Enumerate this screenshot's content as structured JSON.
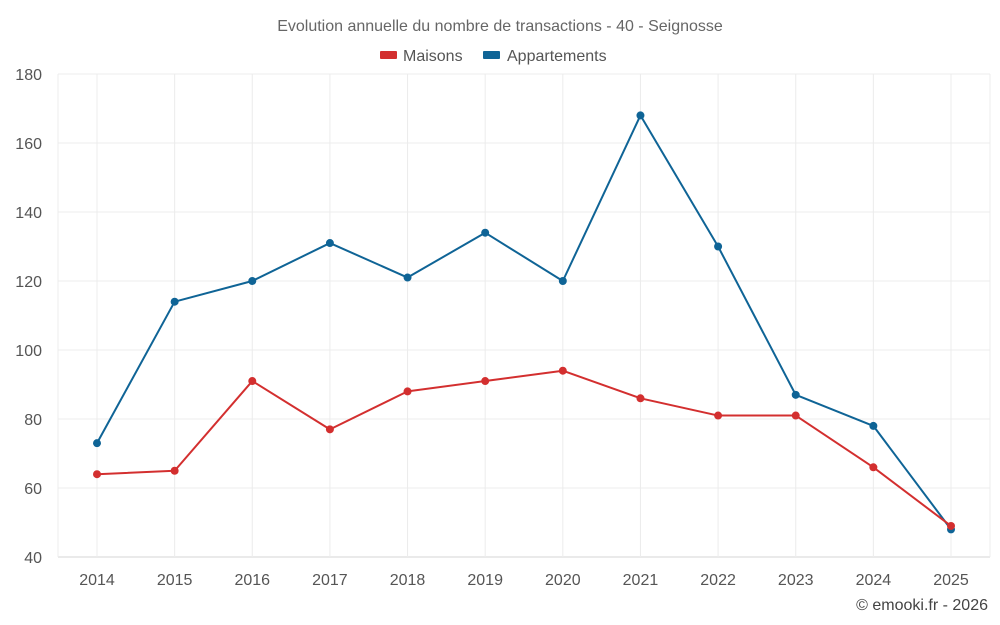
{
  "chart_data": {
    "type": "line",
    "title": "Evolution annuelle du nombre de transactions - 40 - Seignosse",
    "categories": [
      "2014",
      "2015",
      "2016",
      "2017",
      "2018",
      "2019",
      "2020",
      "2021",
      "2022",
      "2023",
      "2024",
      "2025"
    ],
    "series": [
      {
        "name": "Maisons",
        "color": "#d32f2f",
        "values": [
          64,
          65,
          91,
          77,
          88,
          91,
          94,
          86,
          81,
          81,
          66,
          49
        ]
      },
      {
        "name": "Appartements",
        "color": "#0f6496",
        "values": [
          73,
          114,
          120,
          131,
          121,
          134,
          120,
          168,
          130,
          87,
          78,
          48
        ]
      }
    ],
    "ylim": [
      40,
      180
    ],
    "yticks": [
      40,
      60,
      80,
      100,
      120,
      140,
      160,
      180
    ],
    "xlabel": "",
    "ylabel": "",
    "legend_position": "top-center",
    "grid": true
  },
  "credit": "© emooki.fr - 2026"
}
